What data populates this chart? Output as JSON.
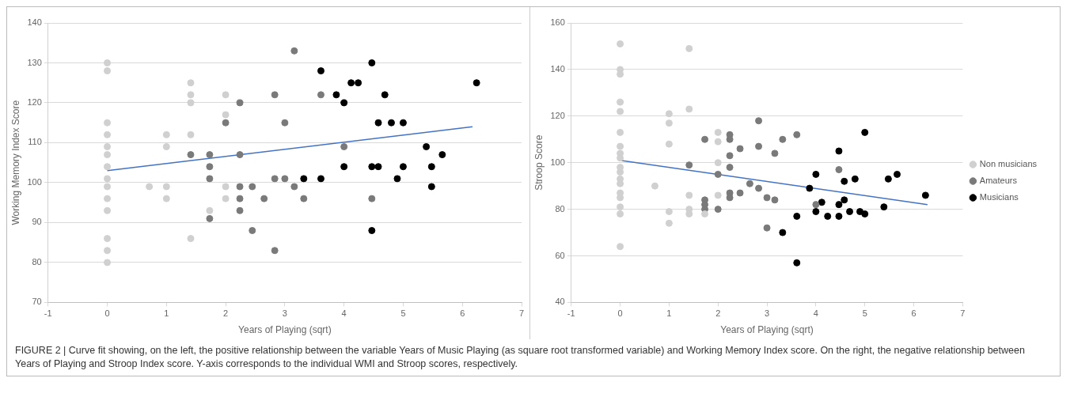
{
  "chart_data": [
    {
      "type": "scatter",
      "xlabel": "Years of Playing (sqrt)",
      "ylabel": "Working Memory Index Score",
      "xlim": [
        -1,
        7
      ],
      "xticks": [
        -1,
        0,
        1,
        2,
        3,
        4,
        5,
        6,
        7
      ],
      "ylim": [
        70,
        140
      ],
      "yticks": [
        70,
        80,
        90,
        100,
        110,
        120,
        130,
        140
      ],
      "grid": "y",
      "legend": false,
      "marker": "circle",
      "series": [
        {
          "color": "#d0d0d0",
          "x": [
            0,
            0,
            0,
            0,
            0,
            0,
            0,
            0,
            0,
            0,
            0,
            0,
            0,
            0,
            0.71,
            1,
            1,
            1,
            1,
            1.41,
            1.41,
            1.41,
            1.41,
            1.41,
            1.73,
            2,
            2,
            2,
            2
          ],
          "values": [
            130,
            128,
            115,
            112,
            109,
            107,
            104,
            101,
            99,
            96,
            93,
            86,
            83,
            80,
            99,
            112,
            109,
            99,
            96,
            125,
            122,
            120,
            112,
            86,
            93,
            122,
            117,
            99,
            96
          ]
        },
        {
          "color": "#7a7a7a",
          "x": [
            3.16,
            2.83,
            3,
            2.24,
            2,
            1.41,
            1.73,
            2.24,
            1.73,
            1.73,
            2.83,
            3,
            2.24,
            2.45,
            3.16,
            2.24,
            2.65,
            3.32,
            2.24,
            1.73,
            2.45,
            2.83,
            3.61,
            4,
            4.47
          ],
          "values": [
            133,
            122,
            115,
            120,
            115,
            107,
            107,
            107,
            104,
            101,
            101,
            101,
            99,
            99,
            99,
            96,
            96,
            96,
            93,
            91,
            88,
            83,
            122,
            109,
            96
          ]
        },
        {
          "color": "#000000",
          "x": [
            3.61,
            4.12,
            4.24,
            3.87,
            4,
            4.69,
            4.47,
            4.58,
            4.8,
            5,
            5.39,
            5.66,
            4,
            4.47,
            4.58,
            5,
            5.48,
            3.32,
            3.61,
            4.9,
            5.48,
            4.47,
            6.24
          ],
          "values": [
            128,
            125,
            125,
            122,
            120,
            122,
            130,
            115,
            115,
            115,
            109,
            107,
            104,
            104,
            104,
            104,
            104,
            101,
            101,
            101,
            99,
            88,
            125
          ]
        },
        {
          "type": "line",
          "color": "#4472c4",
          "marker": "none",
          "x": [
            0,
            6.17
          ],
          "values": [
            103,
            114
          ]
        }
      ],
      "annotations": [
        "FIGURE 2 | Curve fit showing, on the left, the positive relationship between the variable Years of Music Playing (as square root transformed variable) and Working Memory Index score. On the right, the negative relationship between Years of Playing and Stroop Index score. Y-axis corresponds to the individual WMI and Stroop scores, respectively."
      ]
    },
    {
      "type": "scatter",
      "xlabel": "Years of Playing (sqrt)",
      "ylabel": "Stroop Score",
      "xlim": [
        -1,
        7
      ],
      "xticks": [
        -1,
        0,
        1,
        2,
        3,
        4,
        5,
        6,
        7
      ],
      "ylim": [
        40,
        160
      ],
      "yticks": [
        40,
        60,
        80,
        100,
        120,
        140,
        160
      ],
      "grid": "y",
      "legend": "right",
      "marker": "circle",
      "series": [
        {
          "name": "Non musicians",
          "color": "#d0d0d0",
          "x": [
            0,
            0,
            0,
            0,
            0,
            0,
            0,
            0,
            0,
            0,
            0,
            0,
            0,
            0,
            0,
            0,
            0,
            0,
            0.71,
            1,
            1,
            1,
            1,
            1,
            1.41,
            1.41,
            1.41,
            1.41,
            1.41,
            1.73,
            2,
            2,
            2,
            2
          ],
          "values": [
            151,
            140,
            138,
            126,
            122,
            113,
            107,
            104,
            102,
            98,
            96,
            93,
            91,
            87,
            85,
            81,
            78,
            64,
            90,
            121,
            117,
            108,
            79,
            74,
            149,
            123,
            86,
            80,
            78,
            78,
            113,
            109,
            100,
            86
          ]
        },
        {
          "name": "Amateurs",
          "color": "#7a7a7a",
          "x": [
            1.41,
            1.73,
            1.73,
            1.73,
            1.73,
            2,
            2,
            2.24,
            2.24,
            2.24,
            2.24,
            2.24,
            2.24,
            2.45,
            2.45,
            2.65,
            2.83,
            2.83,
            2.83,
            3,
            3,
            3.16,
            3.16,
            3.32,
            3.61,
            4,
            4.47
          ],
          "values": [
            99,
            110,
            84,
            82,
            80,
            95,
            80,
            112,
            110,
            103,
            98,
            87,
            85,
            106,
            87,
            91,
            118,
            107,
            89,
            85,
            72,
            104,
            84,
            110,
            112,
            82,
            97
          ]
        },
        {
          "name": "Musicians",
          "color": "#000000",
          "x": [
            3.61,
            3.61,
            3.32,
            3.87,
            4,
            4,
            4.12,
            4.24,
            4.47,
            4.47,
            4.47,
            4.58,
            4.58,
            4.69,
            4.8,
            4.9,
            5,
            5,
            5.39,
            5.48,
            5.66,
            6.24
          ],
          "values": [
            77,
            57,
            70,
            89,
            95,
            79,
            83,
            77,
            105,
            82,
            77,
            92,
            84,
            79,
            93,
            79,
            78,
            113,
            81,
            93,
            95,
            86
          ]
        },
        {
          "type": "line",
          "color": "#4472c4",
          "marker": "none",
          "x": [
            0,
            6.28
          ],
          "values": [
            101,
            82
          ]
        }
      ]
    }
  ]
}
